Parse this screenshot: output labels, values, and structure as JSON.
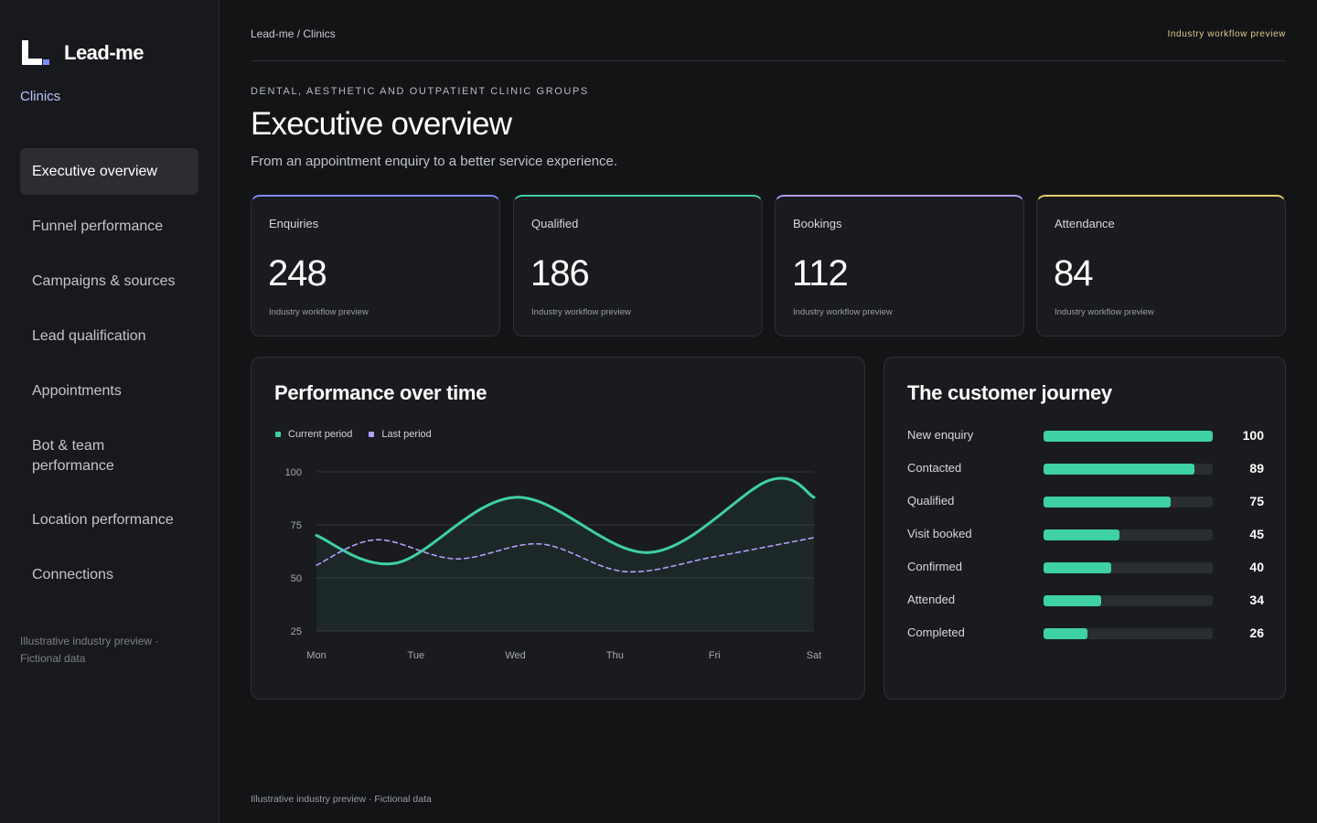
{
  "brand": {
    "name": "Lead-me",
    "subtitle": "Clinics"
  },
  "sidebar": {
    "items": [
      {
        "label": "Executive overview",
        "active": true
      },
      {
        "label": "Funnel performance"
      },
      {
        "label": "Campaigns & sources"
      },
      {
        "label": "Lead qualification"
      },
      {
        "label": "Appointments"
      },
      {
        "label": "Bot & team performance"
      },
      {
        "label": "Location performance"
      },
      {
        "label": "Connections"
      }
    ],
    "footer": "Illustrative industry preview · Fictional data"
  },
  "header": {
    "breadcrumb": "Lead-me / Clinics",
    "tag": "Industry workflow preview",
    "eyebrow": "DENTAL, AESTHETIC AND OUTPATIENT CLINIC GROUPS",
    "title": "Executive overview",
    "description": "From an appointment enquiry to a better service experience."
  },
  "kpis": [
    {
      "label": "Enquiries",
      "value": "248",
      "note": "Industry workflow preview",
      "color": "#7b8cff"
    },
    {
      "label": "Qualified",
      "value": "186",
      "note": "Industry workflow preview",
      "color": "#3ed1a5"
    },
    {
      "label": "Bookings",
      "value": "112",
      "note": "Industry workflow preview",
      "color": "#b39cff"
    },
    {
      "label": "Attendance",
      "value": "84",
      "note": "Industry workflow preview",
      "color": "#f0c872"
    }
  ],
  "performance": {
    "title": "Performance over time",
    "legend": [
      {
        "label": "Current period",
        "color": "#3ed1a5"
      },
      {
        "label": "Last period",
        "color": "#b39cff"
      }
    ]
  },
  "chart_data": {
    "type": "line",
    "categories": [
      "Mon",
      "Tue",
      "Wed",
      "Thu",
      "Fri",
      "Sat"
    ],
    "series": [
      {
        "name": "Current period",
        "color": "#3ed1a5",
        "style": "solid",
        "area": true,
        "values": [
          70,
          57,
          88,
          62,
          96,
          88
        ],
        "smooth_points": [
          [
            0,
            70
          ],
          [
            0.8,
            57
          ],
          [
            2.0,
            88
          ],
          [
            3.35,
            62
          ],
          [
            4.55,
            96
          ],
          [
            5,
            88
          ]
        ]
      },
      {
        "name": "Last period",
        "color": "#b39cff",
        "style": "dashed",
        "area": false,
        "values": [
          56,
          60,
          66,
          53,
          63,
          69
        ],
        "smooth_points": [
          [
            0,
            56
          ],
          [
            0.6,
            68
          ],
          [
            1.4,
            59
          ],
          [
            2.25,
            66
          ],
          [
            3.1,
            53
          ],
          [
            4.0,
            60
          ],
          [
            5,
            69
          ]
        ]
      }
    ],
    "yticks": [
      25,
      50,
      75,
      100
    ],
    "ylim": [
      25,
      100
    ],
    "grid": true,
    "legend_position": "top-left"
  },
  "journey": {
    "title": "The customer journey",
    "max": 100,
    "color": "#3ed1a5",
    "rows": [
      {
        "label": "New enquiry",
        "value": 100
      },
      {
        "label": "Contacted",
        "value": 89
      },
      {
        "label": "Qualified",
        "value": 75
      },
      {
        "label": "Visit booked",
        "value": 45
      },
      {
        "label": "Confirmed",
        "value": 40
      },
      {
        "label": "Attended",
        "value": 34
      },
      {
        "label": "Completed",
        "value": 26
      }
    ]
  },
  "footer": "Illustrative industry preview · Fictional data"
}
